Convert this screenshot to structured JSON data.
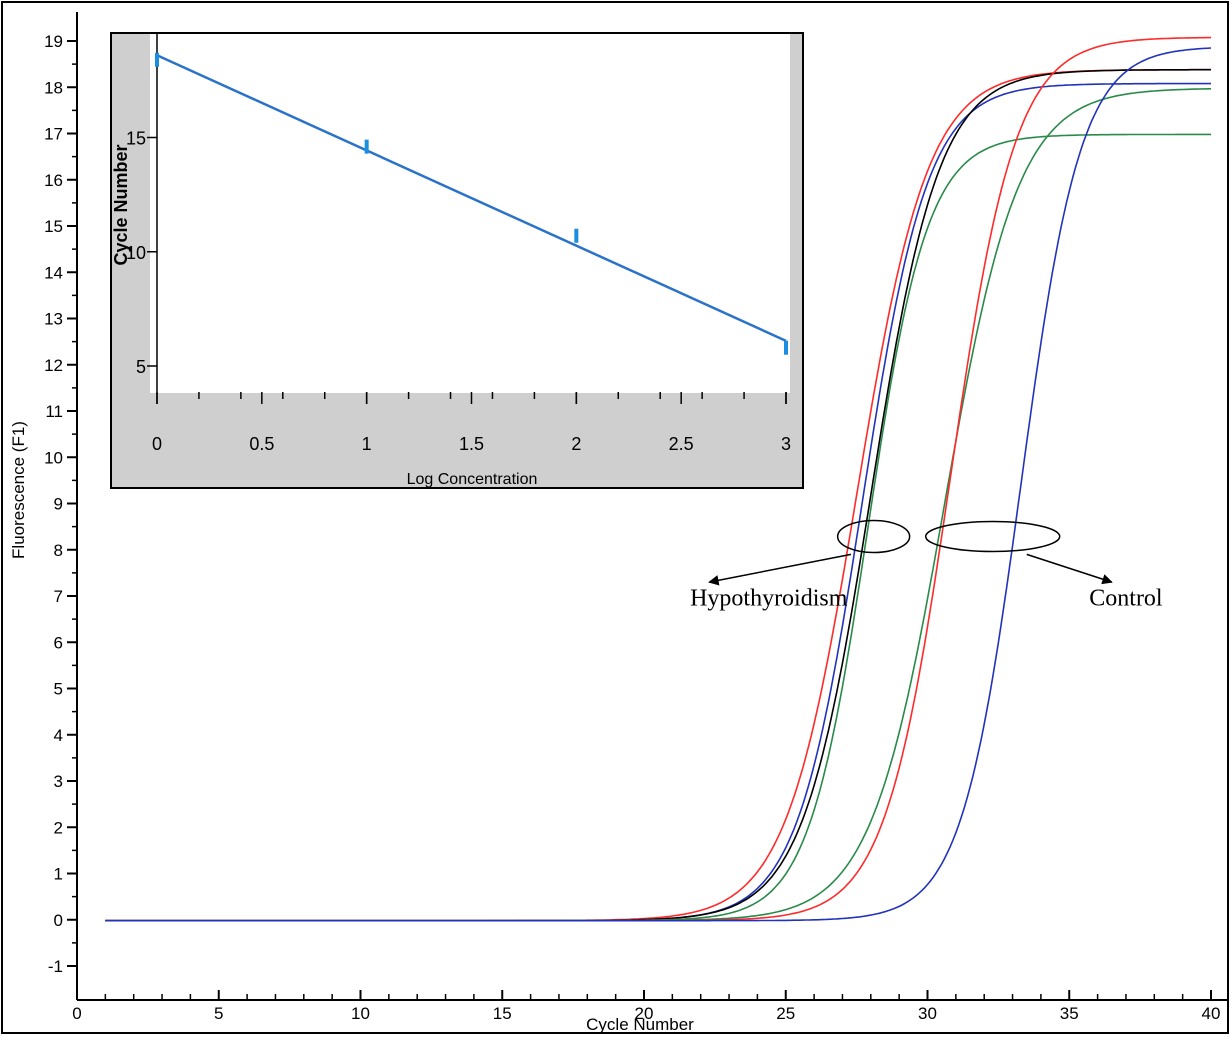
{
  "chart_data": [
    {
      "type": "line",
      "xlabel": "Cycle Number",
      "ylabel": "Fluorescence (F1)",
      "xlim": [
        0,
        40
      ],
      "ylim": [
        -1,
        19.5
      ],
      "xticks": [
        0,
        5,
        10,
        15,
        20,
        25,
        30,
        35,
        40
      ],
      "yticks": [
        -1,
        0,
        1,
        2,
        3,
        4,
        5,
        6,
        7,
        8,
        9,
        10,
        11,
        12,
        13,
        14,
        15,
        16,
        17,
        18,
        19
      ],
      "grid": false,
      "series_model": "sigmoid: baseline + top / (1 + exp(-(cycle - midpoint)/slope))",
      "series": [
        {
          "color": "#ff2a2a",
          "midpoint": 27.5,
          "slope": 1.25,
          "top": 18.4,
          "baseline": -0.02
        },
        {
          "color": "#2233bb",
          "midpoint": 27.7,
          "slope": 1.15,
          "top": 18.1,
          "baseline": -0.02
        },
        {
          "color": "#000000",
          "midpoint": 28.0,
          "slope": 1.2,
          "top": 18.4,
          "baseline": -0.02
        },
        {
          "color": "#2a8a4a",
          "midpoint": 27.9,
          "slope": 1.05,
          "top": 17.0,
          "baseline": -0.02
        },
        {
          "color": "#2a8a4a",
          "midpoint": 30.6,
          "slope": 1.3,
          "top": 18.0,
          "baseline": -0.02
        },
        {
          "color": "#ff2a2a",
          "midpoint": 30.8,
          "slope": 1.15,
          "top": 19.1,
          "baseline": -0.02
        },
        {
          "color": "#2233bb",
          "midpoint": 33.3,
          "slope": 1.05,
          "top": 18.9,
          "baseline": -0.02
        }
      ],
      "annotations": [
        {
          "text": "Hypothyroidism",
          "ellipse_center": [
            28.1,
            8.2
          ],
          "arrow_to": [
            22.3,
            7.3
          ]
        },
        {
          "text": "Control",
          "ellipse_center": [
            32.3,
            8.2
          ],
          "arrow_to": [
            36.5,
            7.3
          ]
        }
      ]
    },
    {
      "type": "scatter",
      "xlabel": "Log Concentration",
      "ylabel": "Cycle Number",
      "xlim": [
        0,
        3
      ],
      "ylim": [
        3.8,
        20.4
      ],
      "xticks": [
        0,
        0.5,
        1,
        1.5,
        2,
        2.5,
        3
      ],
      "yticks": [
        5,
        10,
        15
      ],
      "x": [
        0,
        1,
        2,
        3
      ],
      "y": [
        18.4,
        14.6,
        10.7,
        5.8
      ],
      "fit_line": {
        "start": [
          0,
          18.6
        ],
        "end": [
          3,
          6.1
        ]
      },
      "colors": {
        "points": "#1a8fe0",
        "line": "#2a73c9",
        "margin": "#cfcfcf"
      }
    }
  ]
}
